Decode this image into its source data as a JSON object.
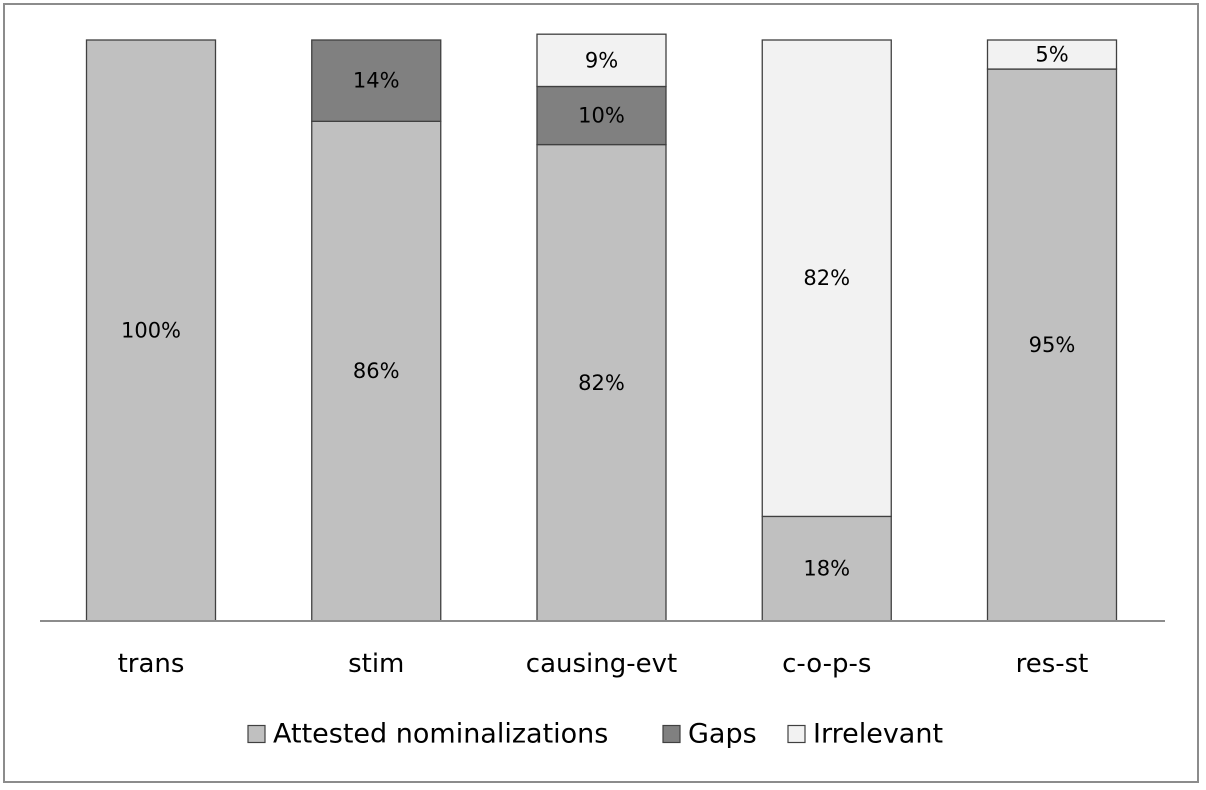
{
  "chart_data": {
    "type": "bar",
    "stacked": true,
    "percent_stacked": true,
    "categories": [
      "trans",
      "stim",
      "causing-evt",
      "c-o-p-s",
      "res-st"
    ],
    "series": [
      {
        "name": "Attested nominalizations",
        "values": [
          100,
          86,
          82,
          18,
          95
        ],
        "labels": [
          "100%",
          "86%",
          "82%",
          "18%",
          "95%"
        ],
        "color": "#c0c0c0"
      },
      {
        "name": "Gaps",
        "values": [
          0,
          14,
          10,
          0,
          0
        ],
        "labels": [
          "",
          "14%",
          "10%",
          "",
          ""
        ],
        "color": "#808080"
      },
      {
        "name": "Irrelevant",
        "values": [
          0,
          0,
          9,
          82,
          5
        ],
        "labels": [
          "",
          "",
          "9%",
          "82%",
          "5%"
        ],
        "color": "#f2f2f2"
      }
    ],
    "ylim": [
      0,
      100
    ],
    "grid": false,
    "legend_position": "bottom"
  }
}
